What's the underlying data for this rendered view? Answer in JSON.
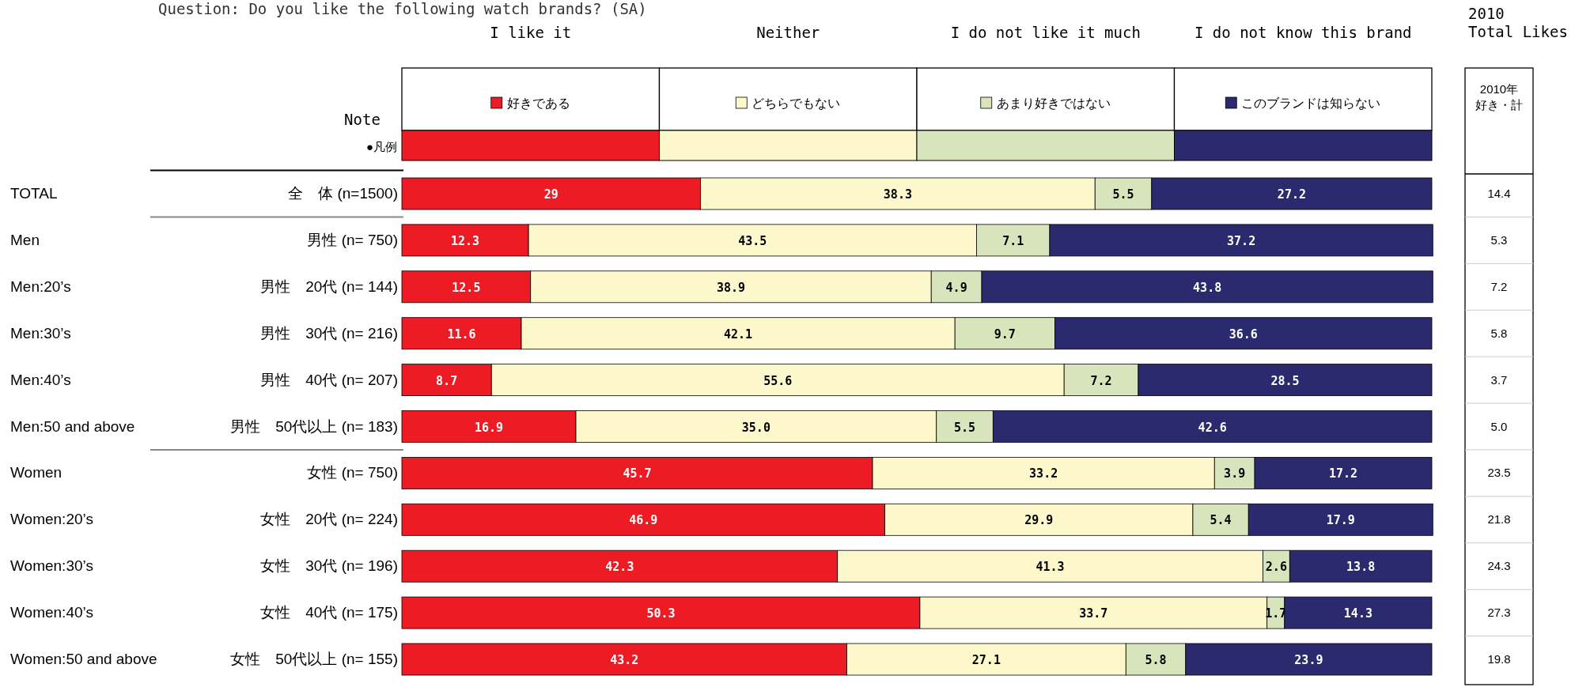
{
  "chart_data": [
    {
      "type": "bar",
      "orientation": "horizontal",
      "stacked": true,
      "title": "Question: Do you like the following watch brands? (SA)",
      "legend": "top",
      "legend_title": "●凡例",
      "xlim": [
        0,
        100
      ],
      "tick_labels": false,
      "categories": [
        "全　体 (n=1500)",
        "男性 (n= 750)",
        "男性　20代 (n= 144)",
        "男性　30代 (n= 216)",
        "男性　40代 (n= 207)",
        "男性　50代以上 (n= 183)",
        "女性 (n= 750)",
        "女性　20代 (n= 224)",
        "女性　30代 (n= 196)",
        "女性　40代 (n= 175)",
        "女性　50代以上 (n= 155)"
      ],
      "series": [
        {
          "name": "好きである",
          "color": "#ed1c24",
          "values": [
            29,
            12.3,
            12.5,
            11.6,
            8.7,
            16.9,
            45.7,
            46.9,
            42.3,
            50.3,
            43.2
          ],
          "value_labels": [
            "29",
            "12.3",
            "12.5",
            "11.6",
            "8.7",
            "16.9",
            "45.7",
            "46.9",
            "42.3",
            "50.3",
            "43.2"
          ]
        },
        {
          "name": "どちらでもない",
          "color": "#fcf8cc",
          "values": [
            38.3,
            43.5,
            38.9,
            42.1,
            55.6,
            35.0,
            33.2,
            29.9,
            41.3,
            33.7,
            27.1
          ],
          "value_labels": [
            "38.3",
            "43.5",
            "38.9",
            "42.1",
            "55.6",
            "35.0",
            "33.2",
            "29.9",
            "41.3",
            "33.7",
            "27.1"
          ]
        },
        {
          "name": "あまり好きではない",
          "color": "#d7e4bc",
          "values": [
            5.5,
            7.1,
            4.9,
            9.7,
            7.2,
            5.5,
            3.9,
            5.4,
            2.6,
            1.7,
            5.8
          ],
          "value_labels": [
            "5.5",
            "7.1",
            "4.9",
            "9.7",
            "7.2",
            "5.5",
            "3.9",
            "5.4",
            "2.6",
            "1.7",
            "5.8"
          ]
        },
        {
          "name": "このブランドは知らない",
          "color": "#2b2a6e",
          "values": [
            27.2,
            37.2,
            43.8,
            36.6,
            28.5,
            42.6,
            17.2,
            17.9,
            13.8,
            14.3,
            23.9
          ],
          "value_labels": [
            "27.2",
            "37.2",
            "43.8",
            "36.6",
            "28.5",
            "42.6",
            "17.2",
            "17.9",
            "13.8",
            "14.3",
            "23.9"
          ]
        }
      ],
      "annotations": [
        "I like it",
        "Neither",
        "I do not like it much",
        "I do not know this brand",
        "Note",
        "TOTAL",
        "Men",
        "Men:20’s",
        "Men:30’s",
        "Men:40’s",
        "Men:50 and above",
        "Women",
        "Women:20’s",
        "Women:30’s",
        "Women:40’s",
        "Women:50 and above"
      ]
    },
    {
      "type": "other",
      "title": "2010 Total Likes",
      "subtitle": "2010年好き・計",
      "categories": [
        null,
        null,
        null,
        null,
        null,
        null,
        null,
        null,
        null,
        null,
        null
      ],
      "values": [
        14.4,
        5.3,
        7.2,
        5.8,
        3.7,
        5.0,
        23.5,
        21.8,
        24.3,
        27.3,
        19.8
      ],
      "value_labels": [
        "14.4",
        "5.3",
        "7.2",
        "5.8",
        "3.7",
        "5.0",
        "23.5",
        "21.8",
        "24.3",
        "27.3",
        "19.8"
      ]
    }
  ]
}
